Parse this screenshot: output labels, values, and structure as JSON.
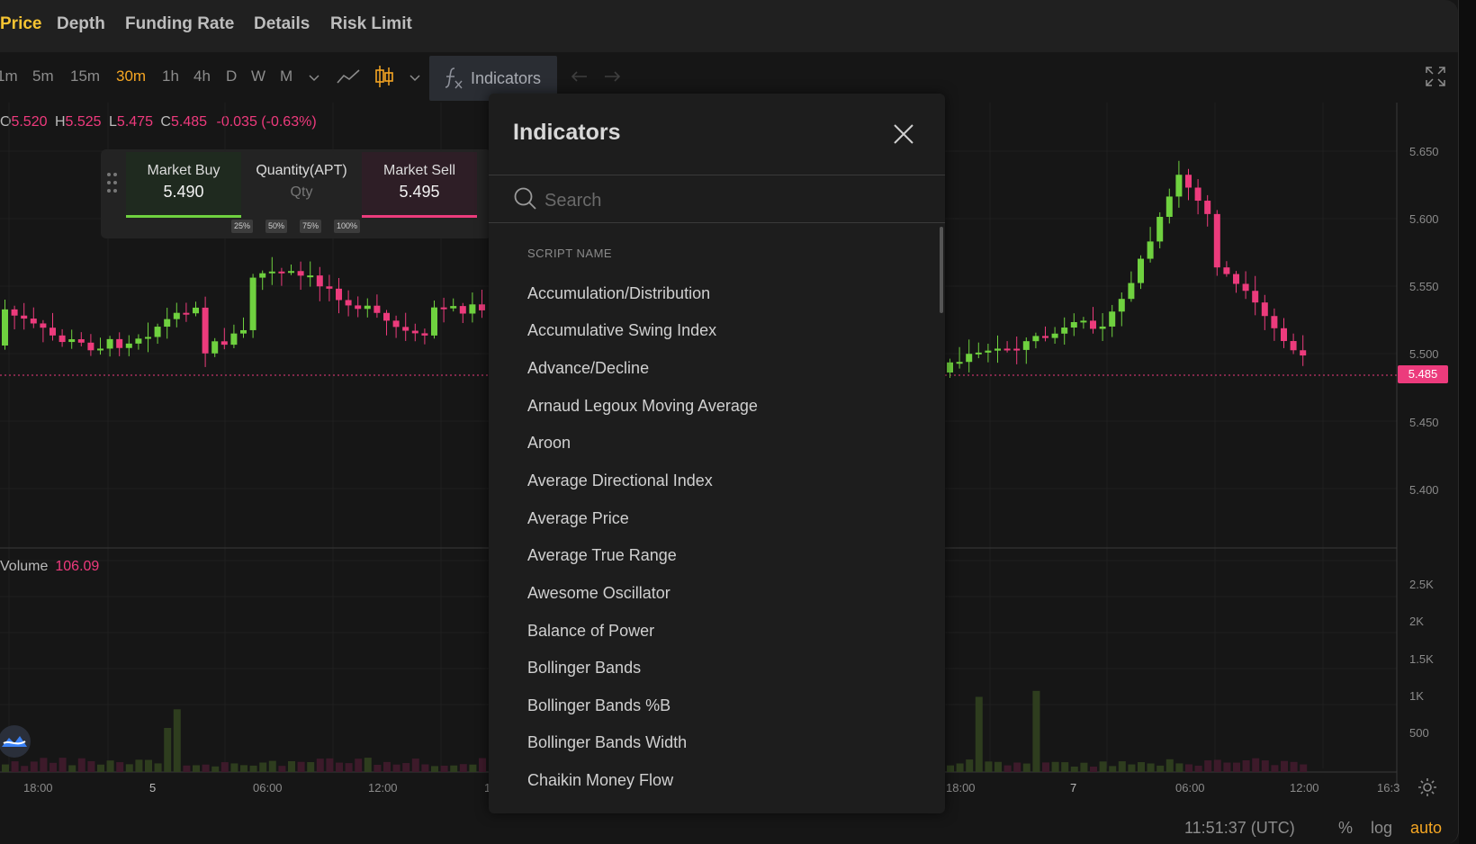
{
  "tabs": [
    {
      "label": "Price",
      "active": true
    },
    {
      "label": "Depth"
    },
    {
      "label": "Funding Rate"
    },
    {
      "label": "Details"
    },
    {
      "label": "Risk Limit"
    }
  ],
  "toolbar": {
    "intervals": [
      "1m",
      "5m",
      "15m",
      "30m",
      "1h",
      "4h",
      "D",
      "W",
      "M"
    ],
    "active_interval": "30m",
    "indicators_label": "Indicators"
  },
  "ohlc": {
    "o_key": "O",
    "o_val": "5.520",
    "h_key": "H",
    "h_val": "5.525",
    "l_key": "L",
    "l_val": "5.475",
    "c_key": "C",
    "c_val": "5.485",
    "change": "-0.035 (-0.63%)"
  },
  "trade": {
    "buy_label": "Market Buy",
    "buy_price": "5.490",
    "qty_label": "Quantity(APT)",
    "qty_placeholder": "Qty",
    "sell_label": "Market Sell",
    "sell_price": "5.495",
    "percents": [
      "25%",
      "50%",
      "75%",
      "100%"
    ]
  },
  "price_axis": [
    "5.650",
    "5.600",
    "5.550",
    "5.500",
    "5.450",
    "5.400"
  ],
  "current_price": "5.485",
  "volume": {
    "label": "Volume",
    "value": "106.09",
    "axis": [
      "2.5K",
      "2K",
      "1.5K",
      "1K",
      "500"
    ]
  },
  "time_axis": [
    "18:00",
    "5",
    "06:00",
    "12:00",
    "1",
    "18:00",
    "7",
    "06:00",
    "12:00",
    "16:3"
  ],
  "bottom": {
    "clock": "11:51:37 (UTC)",
    "percent": "%",
    "log": "log",
    "auto": "auto"
  },
  "dialog": {
    "title": "Indicators",
    "search_placeholder": "Search",
    "column_header": "SCRIPT NAME",
    "items": [
      "Accumulation/Distribution",
      "Accumulative Swing Index",
      "Advance/Decline",
      "Arnaud Legoux Moving Average",
      "Aroon",
      "Average Directional Index",
      "Average Price",
      "Average True Range",
      "Awesome Oscillator",
      "Balance of Power",
      "Bollinger Bands",
      "Bollinger Bands %B",
      "Bollinger Bands Width",
      "Chaikin Money Flow"
    ]
  },
  "colors": {
    "up": "#6fd13f",
    "down": "#ec3b7c",
    "accent": "#f5a623",
    "tab_active": "#f5c332"
  }
}
